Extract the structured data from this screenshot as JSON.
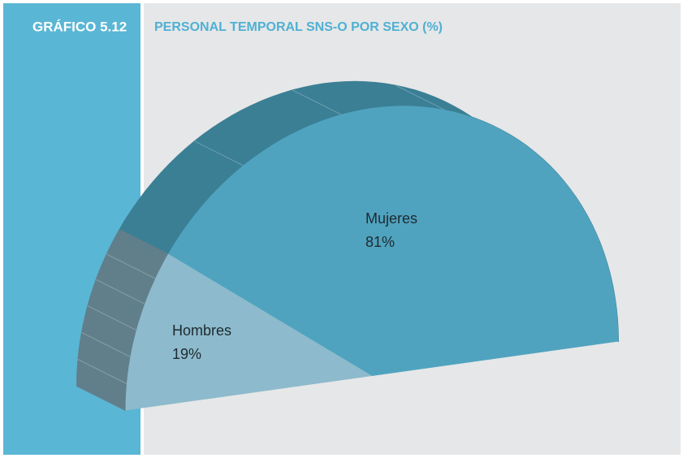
{
  "chart_data": {
    "type": "pie",
    "label": "GRÁFICO 5.12",
    "title": "PERSONAL TEMPORAL SNS-O POR SEXO (%)",
    "categories": [
      "Mujeres",
      "Hombres"
    ],
    "values": [
      81,
      19
    ],
    "value_labels": [
      "81%",
      "19%"
    ],
    "colors": [
      "#4fa3bf",
      "#8dbacc"
    ],
    "side_colors": [
      "#3b7f95",
      "#617f8a"
    ]
  }
}
